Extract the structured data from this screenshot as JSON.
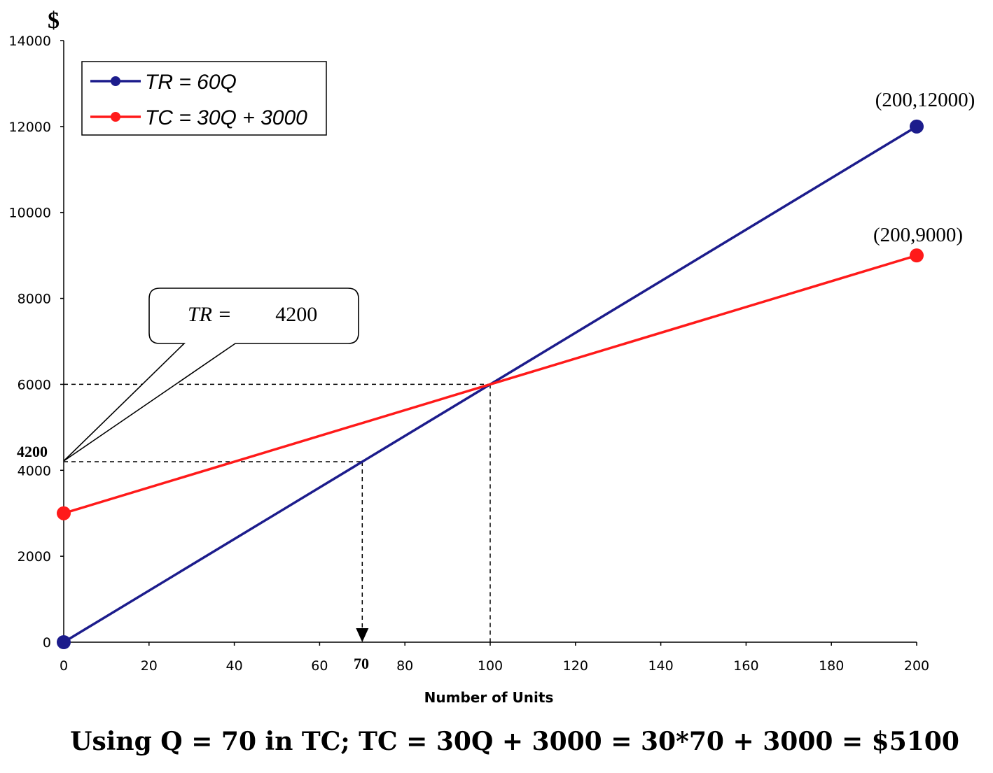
{
  "chart_data": {
    "type": "line",
    "ylabel": "$",
    "xlabel": "Number of Units",
    "xlim": [
      0,
      200
    ],
    "ylim": [
      0,
      14000
    ],
    "x_ticks": [
      0,
      20,
      40,
      60,
      80,
      100,
      120,
      140,
      160,
      180,
      200
    ],
    "y_ticks": [
      0,
      2000,
      4000,
      6000,
      8000,
      10000,
      12000,
      14000
    ],
    "series": [
      {
        "name": "TR = 60Q",
        "color": "#1c1c8c",
        "x": [
          0,
          200
        ],
        "y": [
          0,
          12000
        ]
      },
      {
        "name": "TC = 30Q + 3000",
        "color": "#ff1a1a",
        "x": [
          0,
          200
        ],
        "y": [
          3000,
          9000
        ]
      }
    ],
    "point_labels": [
      {
        "x": 200,
        "y": 12000,
        "text": "(200,12000)"
      },
      {
        "x": 200,
        "y": 9000,
        "text": "(200,9000)"
      }
    ],
    "markers": {
      "break_even": {
        "x": 100,
        "y": 6000
      },
      "q70": {
        "x": 70,
        "y": 4200,
        "x_label": "70",
        "y_label": "4200"
      }
    },
    "callout": {
      "prefix": "TR = ",
      "value": "4200"
    },
    "legend_position": "top-left",
    "footnote": "Using Q = 70 in TC; TC = 30Q + 3000 = 30*70 + 3000 = $5100"
  }
}
